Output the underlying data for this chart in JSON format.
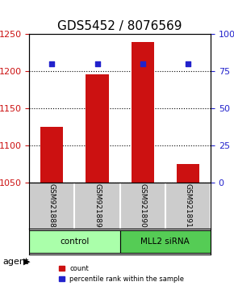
{
  "title": "GDS5452 / 8076569",
  "samples": [
    "GSM921888",
    "GSM921889",
    "GSM921890",
    "GSM921891"
  ],
  "counts": [
    1125,
    1196,
    1240,
    1075
  ],
  "percentiles": [
    80,
    80,
    80,
    80
  ],
  "ylim_left": [
    1050,
    1250
  ],
  "ylim_right": [
    0,
    100
  ],
  "yticks_left": [
    1050,
    1100,
    1150,
    1200,
    1250
  ],
  "yticks_right": [
    0,
    25,
    50,
    75,
    100
  ],
  "bar_color": "#cc1111",
  "dot_color": "#2222cc",
  "bar_width": 0.5,
  "groups": [
    {
      "label": "control",
      "samples": [
        0,
        1
      ],
      "color": "#aaffaa"
    },
    {
      "label": "MLL2 siRNA",
      "samples": [
        2,
        3
      ],
      "color": "#55cc55"
    }
  ],
  "agent_label": "agent",
  "legend_count_label": "count",
  "legend_pct_label": "percentile rank within the sample",
  "grid_color": "#000000",
  "label_area_color": "#cccccc",
  "title_fontsize": 11,
  "axis_fontsize": 9,
  "tick_fontsize": 8
}
